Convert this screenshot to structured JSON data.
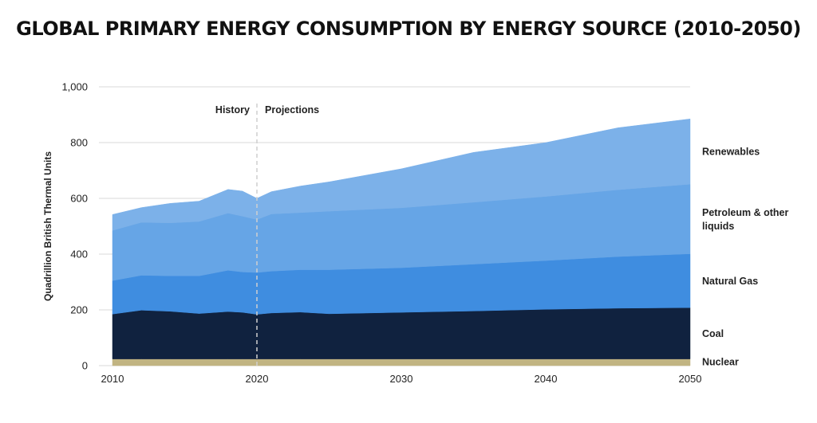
{
  "chart_data": {
    "type": "area",
    "stacked": true,
    "title": "GLOBAL PRIMARY ENERGY CONSUMPTION BY ENERGY SOURCE (2010-2050)",
    "xlabel": "",
    "ylabel": "Quadrillion British Thermal Units",
    "x": [
      2010,
      2012,
      2014,
      2016,
      2018,
      2019,
      2020,
      2021,
      2023,
      2025,
      2030,
      2035,
      2040,
      2045,
      2050
    ],
    "xlim": [
      2010,
      2050
    ],
    "ylim": [
      0,
      1000
    ],
    "x_ticks": [
      "2010",
      "2020",
      "2030",
      "2040",
      "2050"
    ],
    "y_ticks": [
      "0",
      "200",
      "400",
      "600",
      "800",
      "1,000"
    ],
    "grid": true,
    "divider": {
      "x": 2020,
      "left_label": "History",
      "right_label": "Projections"
    },
    "series": [
      {
        "name": "Nuclear",
        "color": "#c1b482",
        "values": [
          24,
          24,
          24,
          24,
          24,
          24,
          24,
          24,
          24,
          24,
          24,
          24,
          24,
          24,
          24
        ]
      },
      {
        "name": "Coal",
        "color": "#10223f",
        "values": [
          161,
          175,
          171,
          163,
          170,
          167,
          160,
          165,
          168,
          162,
          167,
          172,
          178,
          182,
          184
        ]
      },
      {
        "name": "Natural Gas",
        "color": "#3f8de0",
        "values": [
          120,
          125,
          127,
          135,
          148,
          145,
          150,
          150,
          152,
          158,
          160,
          168,
          175,
          185,
          193
        ]
      },
      {
        "name": "Petroleum & other liquids",
        "color": "#66a5e6",
        "values": [
          180,
          190,
          190,
          195,
          205,
          200,
          190,
          205,
          205,
          210,
          215,
          222,
          230,
          240,
          250
        ]
      },
      {
        "name": "Renewables",
        "color": "#7cb1e9",
        "values": [
          57,
          53,
          70,
          73,
          85,
          90,
          76,
          80,
          95,
          105,
          140,
          179,
          193,
          222,
          234
        ]
      }
    ]
  }
}
